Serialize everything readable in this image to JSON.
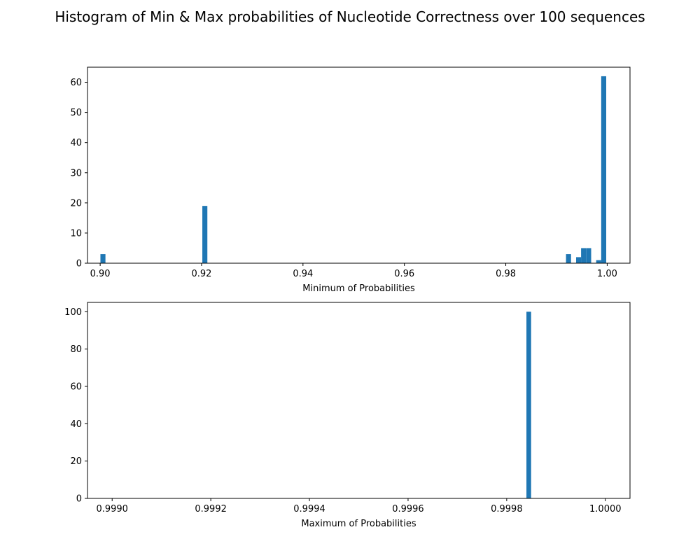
{
  "figure": {
    "title": "Histogram of Min & Max probabilities of Nucleotide Correctness over 100 sequences"
  },
  "colors": {
    "bar": "#1f77b4",
    "axis": "#000000",
    "background": "#ffffff"
  },
  "chart_data": [
    {
      "type": "bar",
      "subtype": "histogram",
      "xlabel": "Minimum of Probabilities",
      "ylabel": "",
      "xlim": [
        0.8975,
        1.0045
      ],
      "ylim": [
        0,
        65
      ],
      "xticks": [
        0.9,
        0.92,
        0.94,
        0.96,
        0.98,
        1.0
      ],
      "xtick_labels": [
        "0.90",
        "0.92",
        "0.94",
        "0.96",
        "0.98",
        "1.00"
      ],
      "yticks": [
        0,
        10,
        20,
        30,
        40,
        50,
        60
      ],
      "ytick_labels": [
        "0",
        "10",
        "20",
        "30",
        "40",
        "50",
        "60"
      ],
      "bin_width": 0.00099,
      "bins": [
        {
          "x": 0.90005,
          "count": 3
        },
        {
          "x": 0.92015,
          "count": 19
        },
        {
          "x": 0.99188,
          "count": 3
        },
        {
          "x": 0.99387,
          "count": 2
        },
        {
          "x": 0.99485,
          "count": 5
        },
        {
          "x": 0.99585,
          "count": 5
        },
        {
          "x": 0.99783,
          "count": 1
        },
        {
          "x": 0.99882,
          "count": 62
        }
      ],
      "grid": false,
      "legend": "none"
    },
    {
      "type": "bar",
      "subtype": "histogram",
      "xlabel": "Maximum of Probabilities",
      "ylabel": "",
      "xlim": [
        0.99895,
        1.00005
      ],
      "ylim": [
        0,
        105
      ],
      "xticks": [
        0.999,
        0.9992,
        0.9994,
        0.9996,
        0.9998,
        1.0
      ],
      "xtick_labels": [
        "0.9990",
        "0.9992",
        "0.9994",
        "0.9996",
        "0.9998",
        "1.0000"
      ],
      "yticks": [
        0,
        20,
        40,
        60,
        80,
        100
      ],
      "ytick_labels": [
        "0",
        "20",
        "40",
        "60",
        "80",
        "100"
      ],
      "bin_width": 9.5e-06,
      "bins": [
        {
          "x": 0.99984,
          "count": 100
        }
      ],
      "grid": false,
      "legend": "none"
    }
  ]
}
